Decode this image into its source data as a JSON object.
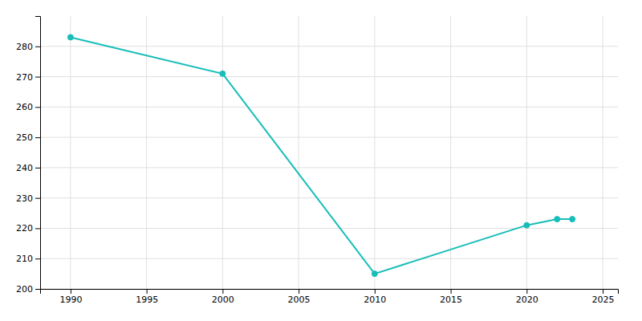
{
  "chart_data": {
    "type": "line",
    "x": [
      1990,
      2000,
      2010,
      2020,
      2022,
      2023
    ],
    "values": [
      283,
      271,
      205,
      221,
      223,
      223
    ],
    "color": "#17BDB8",
    "marker": "circle",
    "xlim": [
      1988,
      2026
    ],
    "ylim": [
      200,
      290
    ],
    "xticks": [
      1990,
      1995,
      2000,
      2005,
      2010,
      2015,
      2020,
      2025
    ],
    "yticks": [
      200,
      210,
      220,
      230,
      240,
      250,
      260,
      270,
      280
    ],
    "grid": true
  }
}
